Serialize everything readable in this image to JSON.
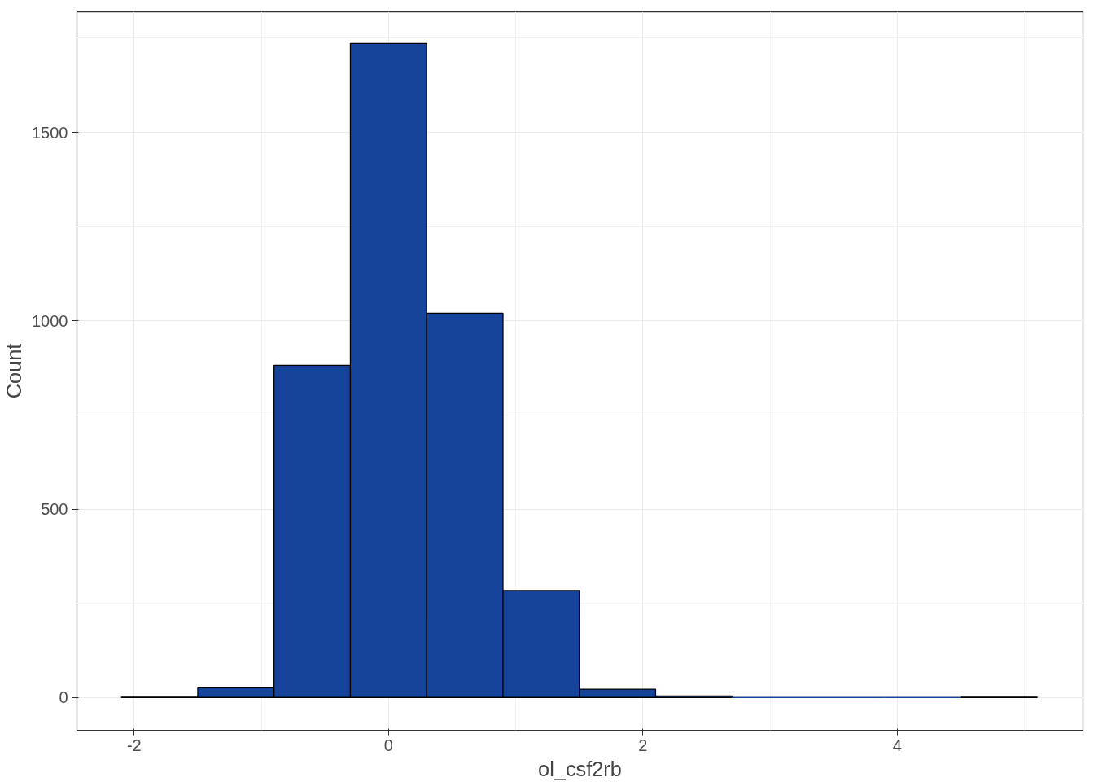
{
  "chart_data": {
    "type": "histogram",
    "xlabel": "ol_csf2rb",
    "ylabel": "Count",
    "bins": [
      -2.1,
      -1.5,
      -0.9,
      -0.3,
      0.3,
      0.9,
      1.5,
      2.1,
      2.7,
      3.3,
      3.9,
      4.5,
      5.1
    ],
    "values": [
      1,
      27,
      882,
      1736,
      1020,
      284,
      22,
      4,
      0,
      0,
      0,
      1
    ],
    "color": "#17449b",
    "xlim": [
      -2.45,
      5.46
    ],
    "ylim": [
      -87,
      1820
    ],
    "xticks": [
      -2,
      0,
      2,
      4
    ],
    "yticks": [
      0,
      500,
      1000,
      1500
    ],
    "grid": true
  }
}
